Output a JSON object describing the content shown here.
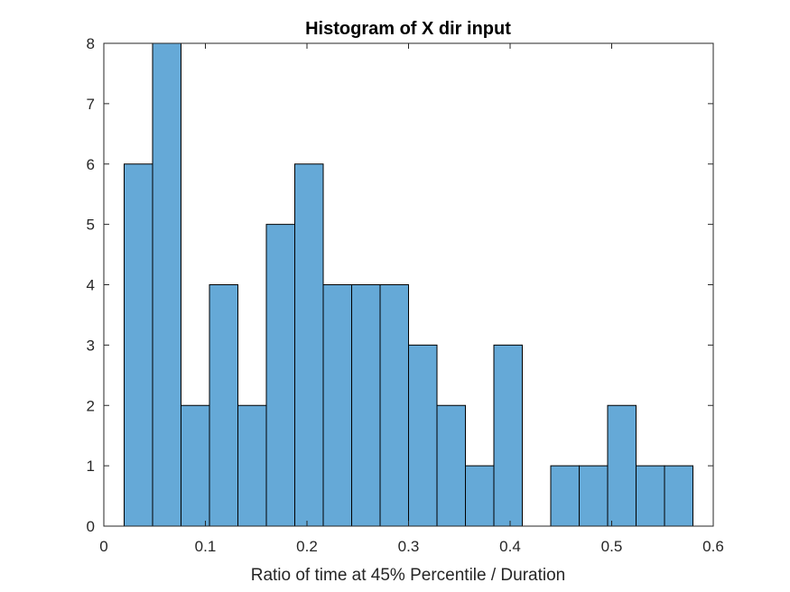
{
  "chart_data": {
    "type": "histogram",
    "title": "Histogram of X dir input",
    "xlabel": "Ratio of time at 45% Percentile / Duration",
    "ylabel": "",
    "xlim": [
      0,
      0.6
    ],
    "ylim": [
      0,
      8
    ],
    "bin_edges": [
      0.02,
      0.048,
      0.076,
      0.104,
      0.132,
      0.16,
      0.188,
      0.216,
      0.244,
      0.272,
      0.3,
      0.328,
      0.356,
      0.384,
      0.412,
      0.44,
      0.468,
      0.496,
      0.524,
      0.552,
      0.58
    ],
    "values": [
      6,
      8,
      2,
      4,
      2,
      5,
      6,
      4,
      4,
      4,
      3,
      2,
      1,
      3,
      0,
      1,
      1,
      2,
      1,
      1
    ],
    "x_ticks": [
      {
        "value": 0,
        "label": "0"
      },
      {
        "value": 0.1,
        "label": "0.1"
      },
      {
        "value": 0.2,
        "label": "0.2"
      },
      {
        "value": 0.3,
        "label": "0.3"
      },
      {
        "value": 0.4,
        "label": "0.4"
      },
      {
        "value": 0.5,
        "label": "0.5"
      },
      {
        "value": 0.6,
        "label": "0.6"
      }
    ],
    "y_ticks": [
      {
        "value": 0,
        "label": "0"
      },
      {
        "value": 1,
        "label": "1"
      },
      {
        "value": 2,
        "label": "2"
      },
      {
        "value": 3,
        "label": "3"
      },
      {
        "value": 4,
        "label": "4"
      },
      {
        "value": 5,
        "label": "5"
      },
      {
        "value": 6,
        "label": "6"
      },
      {
        "value": 7,
        "label": "7"
      },
      {
        "value": 8,
        "label": "8"
      }
    ],
    "grid": false,
    "legend": "none",
    "colors": {
      "bar_fill": "#65a9d7",
      "bar_edge": "#000000",
      "axis": "#262626",
      "background": "#ffffff"
    }
  }
}
